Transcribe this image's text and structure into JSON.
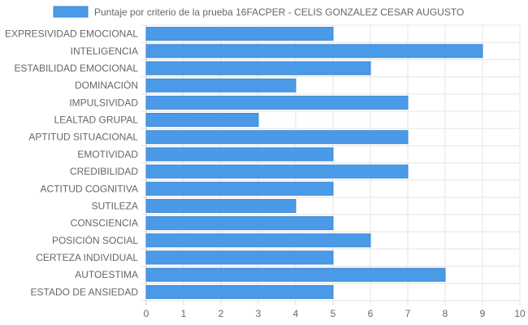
{
  "chart_data": {
    "type": "bar",
    "orientation": "horizontal",
    "categories": [
      "EXPRESIVIDAD EMOCIONAL",
      "INTELIGENCIA",
      "ESTABILIDAD EMOCIONAL",
      "DOMINACIÓN",
      "IMPULSIVIDAD",
      "LEALTAD GRUPAL",
      "APTITUD SITUACIONAL",
      "EMOTIVIDAD",
      "CREDIBILIDAD",
      "ACTITUD COGNITIVA",
      "SUTILEZA",
      "CONSCIENCIA",
      "POSICIÓN SOCIAL",
      "CERTEZA INDIVIDUAL",
      "AUTOESTIMA",
      "ESTADO DE ANSIEDAD"
    ],
    "series": [
      {
        "name": "Puntaje por criterio de la prueba 16FACPER - CELIS GONZALEZ CESAR AUGUSTO",
        "values": [
          5,
          9,
          6,
          4,
          7,
          3,
          7,
          5,
          7,
          5,
          4,
          5,
          6,
          5,
          8,
          5
        ]
      }
    ],
    "xlim": [
      0,
      10
    ],
    "xticks": [
      "0",
      "1",
      "2",
      "3",
      "4",
      "5",
      "6",
      "7",
      "8",
      "9",
      "10"
    ],
    "grid": true,
    "legend": "top-center",
    "colors": {
      "bar_fill": "#4a9ae8",
      "bar_stroke": "#3b87d6",
      "grid": "#e5e5e5",
      "text": "#666666"
    }
  }
}
